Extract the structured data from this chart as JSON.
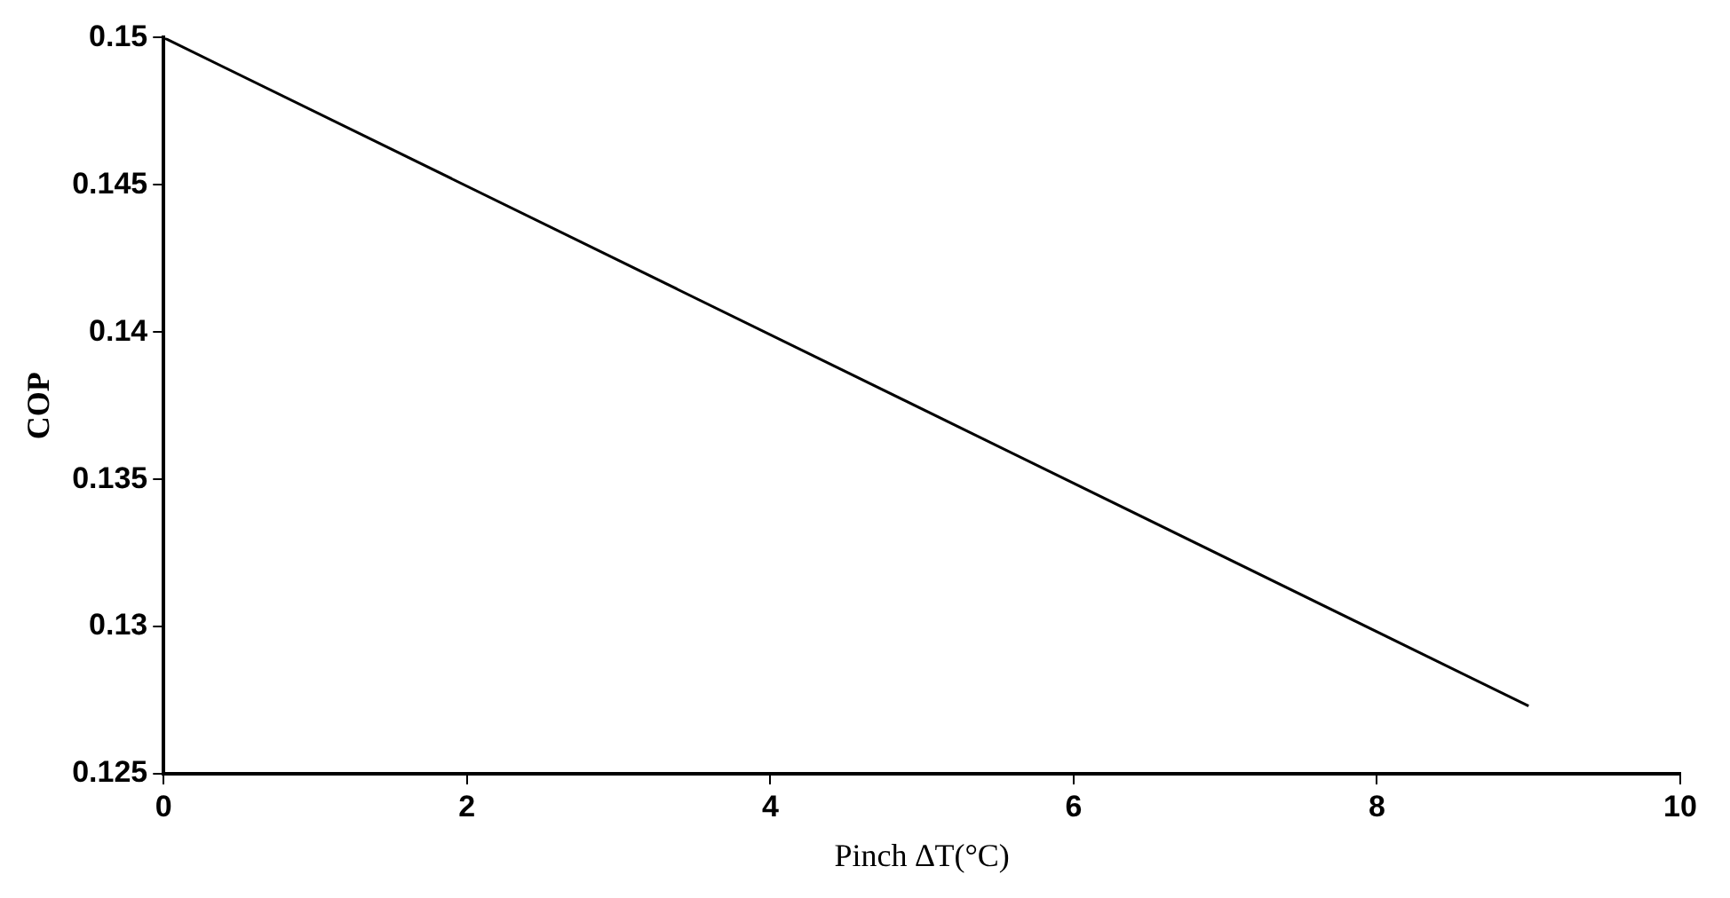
{
  "chart_data": {
    "type": "line",
    "xlabel": "Pinch ∆T(°C)",
    "ylabel": "COP",
    "series": [
      {
        "color": "#000000",
        "x": [
          0,
          9
        ],
        "values": [
          0.15,
          0.1273
        ]
      }
    ],
    "xlim": [
      0,
      10
    ],
    "xticks": [
      0,
      2,
      4,
      6,
      8,
      10
    ],
    "ylim": [
      0.125,
      0.15
    ],
    "yticks": [
      0.125,
      0.13,
      0.135,
      0.14,
      0.145,
      0.15
    ],
    "grid": false,
    "legend": false,
    "marker": "none",
    "line_style": "solid"
  }
}
